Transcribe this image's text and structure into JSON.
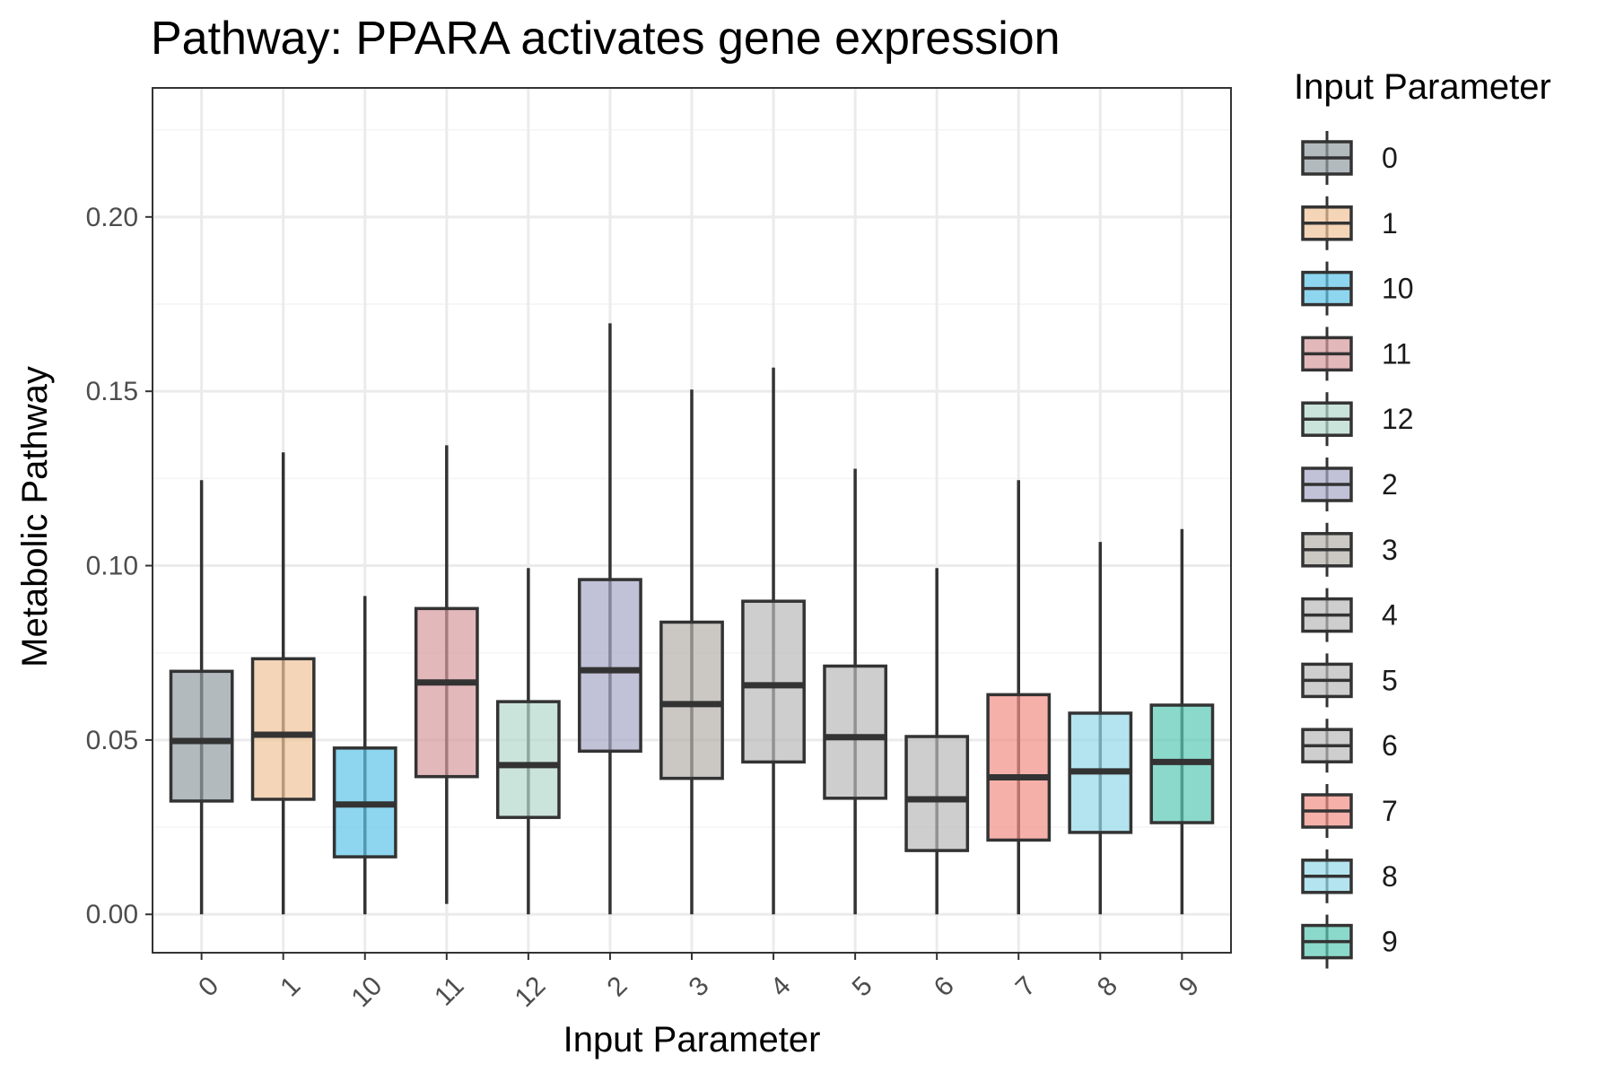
{
  "chart_data": {
    "type": "box",
    "title": "Pathway: PPARA activates gene expression",
    "xlabel": "Input Parameter",
    "ylabel": "Metabolic Pathway",
    "ylim": [
      -0.011,
      0.237
    ],
    "y_ticks": [
      0.0,
      0.05,
      0.1,
      0.15,
      0.2
    ],
    "y_tick_labels": [
      "0.00",
      "0.05",
      "0.10",
      "0.15",
      "0.20"
    ],
    "grid": true,
    "legend": {
      "title": "Input Parameter",
      "position": "right"
    },
    "categories": [
      "0",
      "1",
      "10",
      "11",
      "12",
      "2",
      "3",
      "4",
      "5",
      "6",
      "7",
      "8",
      "9"
    ],
    "boxes": [
      {
        "category": "0",
        "min": 0.0,
        "q1": 0.0325,
        "median": 0.0497,
        "q3": 0.0697,
        "max": 0.1245,
        "color": "#919ca3"
      },
      {
        "category": "1",
        "min": 0.0,
        "q1": 0.033,
        "median": 0.0515,
        "q3": 0.0733,
        "max": 0.1325,
        "color": "#f0c398"
      },
      {
        "category": "10",
        "min": 0.0,
        "q1": 0.0165,
        "median": 0.0315,
        "q3": 0.0477,
        "max": 0.0913,
        "color": "#5ec4e8"
      },
      {
        "category": "11",
        "min": 0.003,
        "q1": 0.0395,
        "median": 0.0665,
        "q3": 0.0877,
        "max": 0.1345,
        "color": "#d79a9e"
      },
      {
        "category": "12",
        "min": 0.0,
        "q1": 0.0278,
        "median": 0.0428,
        "q3": 0.061,
        "max": 0.0993,
        "color": "#b5d9cc"
      },
      {
        "category": "2",
        "min": 0.0,
        "q1": 0.0468,
        "median": 0.07,
        "q3": 0.096,
        "max": 0.1695,
        "color": "#a6a6c8"
      },
      {
        "category": "3",
        "min": 0.0,
        "q1": 0.039,
        "median": 0.0603,
        "q3": 0.0838,
        "max": 0.1505,
        "color": "#b5b0aa"
      },
      {
        "category": "4",
        "min": 0.0,
        "q1": 0.0437,
        "median": 0.0657,
        "q3": 0.0898,
        "max": 0.1568,
        "color": "#b9b9b9"
      },
      {
        "category": "5",
        "min": 0.0,
        "q1": 0.0333,
        "median": 0.0508,
        "q3": 0.0712,
        "max": 0.1278,
        "color": "#b9b9b9"
      },
      {
        "category": "6",
        "min": 0.0,
        "q1": 0.0183,
        "median": 0.033,
        "q3": 0.051,
        "max": 0.0993,
        "color": "#b9b9b9"
      },
      {
        "category": "7",
        "min": 0.0,
        "q1": 0.0213,
        "median": 0.0393,
        "q3": 0.063,
        "max": 0.1245,
        "color": "#f28e86"
      },
      {
        "category": "8",
        "min": 0.0,
        "q1": 0.0235,
        "median": 0.041,
        "q3": 0.0577,
        "max": 0.1068,
        "color": "#94d8e8"
      },
      {
        "category": "9",
        "min": 0.0,
        "q1": 0.0263,
        "median": 0.0437,
        "q3": 0.06,
        "max": 0.1105,
        "color": "#5ac9b5"
      }
    ],
    "legend_items": [
      "0",
      "1",
      "10",
      "11",
      "12",
      "2",
      "3",
      "4",
      "5",
      "6",
      "7",
      "8",
      "9"
    ],
    "colors": {
      "panel_border": "#333333",
      "grid_major": "#ebebeb",
      "grid_minor": "#f4f4f4",
      "box_outline": "#333333",
      "tick_label": "#4d4d4d",
      "tick_mark": "#333333"
    },
    "box_fill_opacity": 0.7
  }
}
